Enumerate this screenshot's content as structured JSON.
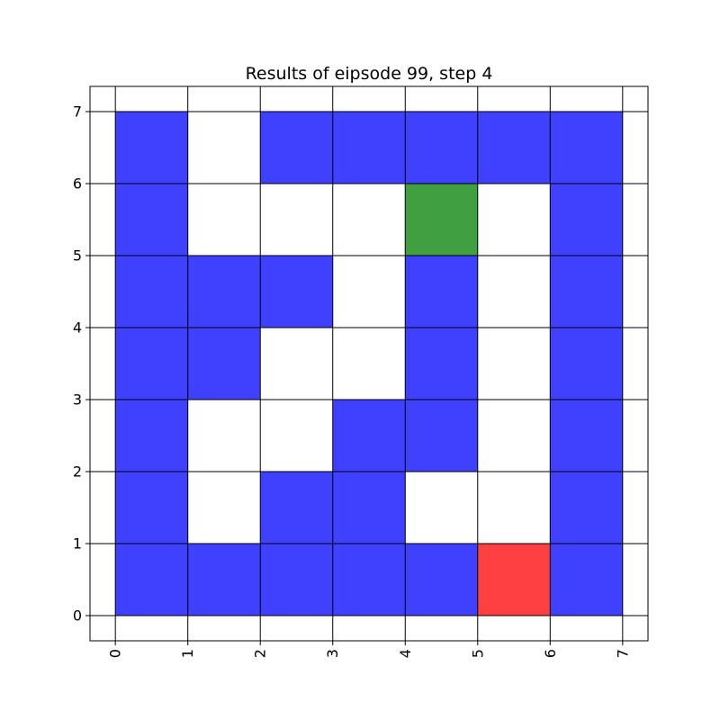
{
  "chart_data": {
    "type": "heatmap",
    "title": "Results of eipsode 99, step 4",
    "xlabel": "",
    "ylabel": "",
    "xlim": [
      -0.35,
      7.35
    ],
    "ylim": [
      -0.35,
      7.35
    ],
    "xticks": [
      "0",
      "1",
      "2",
      "3",
      "4",
      "5",
      "6",
      "7"
    ],
    "yticks": [
      "0",
      "1",
      "2",
      "3",
      "4",
      "5",
      "6",
      "7"
    ],
    "xtick_rotation": 90,
    "grid": true,
    "colors": {
      "wall": "#4040ff",
      "start": "#ff4040",
      "goal": "#40a040",
      "empty": "#ffffff"
    },
    "cells": [
      {
        "x": 0,
        "y": 0,
        "kind": "wall"
      },
      {
        "x": 1,
        "y": 0,
        "kind": "wall"
      },
      {
        "x": 2,
        "y": 0,
        "kind": "wall"
      },
      {
        "x": 3,
        "y": 0,
        "kind": "wall"
      },
      {
        "x": 4,
        "y": 0,
        "kind": "wall"
      },
      {
        "x": 5,
        "y": 0,
        "kind": "start"
      },
      {
        "x": 6,
        "y": 0,
        "kind": "wall"
      },
      {
        "x": 0,
        "y": 1,
        "kind": "wall"
      },
      {
        "x": 2,
        "y": 1,
        "kind": "wall"
      },
      {
        "x": 3,
        "y": 1,
        "kind": "wall"
      },
      {
        "x": 6,
        "y": 1,
        "kind": "wall"
      },
      {
        "x": 0,
        "y": 2,
        "kind": "wall"
      },
      {
        "x": 3,
        "y": 2,
        "kind": "wall"
      },
      {
        "x": 4,
        "y": 2,
        "kind": "wall"
      },
      {
        "x": 6,
        "y": 2,
        "kind": "wall"
      },
      {
        "x": 0,
        "y": 3,
        "kind": "wall"
      },
      {
        "x": 1,
        "y": 3,
        "kind": "wall"
      },
      {
        "x": 4,
        "y": 3,
        "kind": "wall"
      },
      {
        "x": 6,
        "y": 3,
        "kind": "wall"
      },
      {
        "x": 0,
        "y": 4,
        "kind": "wall"
      },
      {
        "x": 1,
        "y": 4,
        "kind": "wall"
      },
      {
        "x": 2,
        "y": 4,
        "kind": "wall"
      },
      {
        "x": 4,
        "y": 4,
        "kind": "wall"
      },
      {
        "x": 6,
        "y": 4,
        "kind": "wall"
      },
      {
        "x": 0,
        "y": 5,
        "kind": "wall"
      },
      {
        "x": 4,
        "y": 5,
        "kind": "goal"
      },
      {
        "x": 6,
        "y": 5,
        "kind": "wall"
      },
      {
        "x": 0,
        "y": 6,
        "kind": "wall"
      },
      {
        "x": 2,
        "y": 6,
        "kind": "wall"
      },
      {
        "x": 3,
        "y": 6,
        "kind": "wall"
      },
      {
        "x": 4,
        "y": 6,
        "kind": "wall"
      },
      {
        "x": 5,
        "y": 6,
        "kind": "wall"
      },
      {
        "x": 6,
        "y": 6,
        "kind": "wall"
      }
    ]
  }
}
